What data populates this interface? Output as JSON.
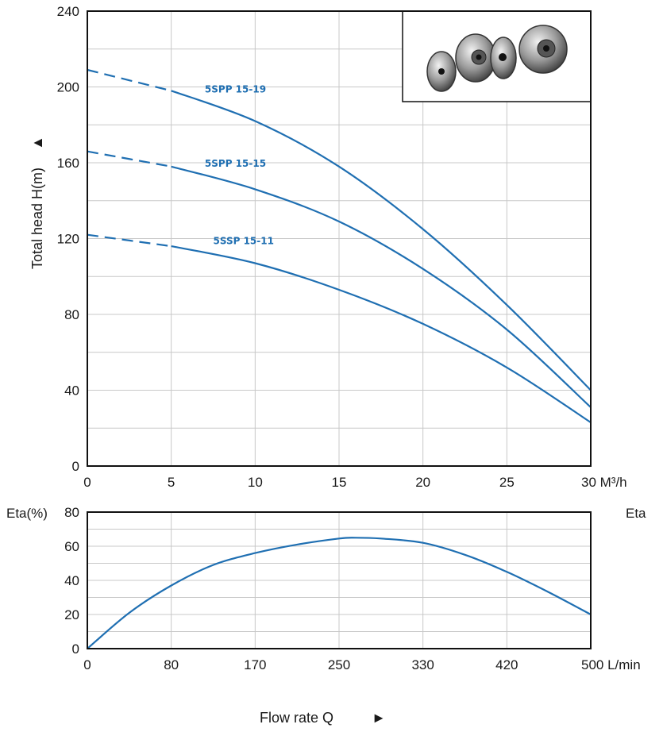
{
  "chart_data": [
    {
      "type": "line",
      "ylabel": "Total head H(m)",
      "ylabel_arrow": "▲",
      "xlim": [
        0,
        30
      ],
      "ylim": [
        0,
        240
      ],
      "x_ticks": [
        0,
        5,
        10,
        15,
        20,
        25,
        30
      ],
      "x_tick_labels": [
        "0",
        "5",
        "10",
        "15",
        "20",
        "25",
        "30 M³/h"
      ],
      "y_ticks": [
        0,
        40,
        80,
        120,
        160,
        200,
        240
      ],
      "y_tick_labels": [
        "0",
        "40",
        "80",
        "120",
        "160",
        "200",
        "240"
      ],
      "grid": true,
      "colors": {
        "curve": "#1f6fb2"
      },
      "dashed_until_x": 5,
      "inset_image": "pump-impeller-photo",
      "series": [
        {
          "name": "5SPP 15-19",
          "label_at": [
            7,
            197
          ],
          "x": [
            0,
            5,
            10,
            15,
            20,
            25,
            30
          ],
          "y": [
            209,
            198,
            182,
            158,
            125,
            85,
            40
          ]
        },
        {
          "name": "5SPP 15-15",
          "label_at": [
            7,
            158
          ],
          "x": [
            0,
            5,
            10,
            15,
            20,
            25,
            30
          ],
          "y": [
            166,
            158,
            146,
            129,
            104,
            72,
            31
          ]
        },
        {
          "name": "5SSP 15-11",
          "label_at": [
            7.5,
            117
          ],
          "x": [
            0,
            5,
            10,
            15,
            20,
            25,
            30
          ],
          "y": [
            122,
            116,
            107,
            93,
            75,
            52,
            23
          ]
        }
      ]
    },
    {
      "type": "line",
      "ylabel": "Eta(%)",
      "right_label": "Eta",
      "xlabel": "Flow rate Q",
      "xlabel_arrow": "►",
      "xlim": [
        0,
        30
      ],
      "ylim": [
        0,
        80
      ],
      "x_ticks": [
        0,
        5,
        10,
        15,
        20,
        25,
        30
      ],
      "x_tick_labels": [
        "0",
        "80",
        "170",
        "250",
        "330",
        "420",
        "500 L/min"
      ],
      "y_ticks": [
        0,
        20,
        40,
        60,
        80
      ],
      "y_tick_labels": [
        "0",
        "20",
        "40",
        "60",
        "80"
      ],
      "grid": true,
      "colors": {
        "curve": "#1f6fb2"
      },
      "series": [
        {
          "name": "",
          "x": [
            0,
            2.5,
            5,
            7.5,
            10,
            12.5,
            15,
            16,
            17.5,
            20,
            22.5,
            25,
            27.5,
            30
          ],
          "y": [
            0,
            21,
            37,
            49,
            56,
            61,
            64.5,
            65,
            64.5,
            62,
            55,
            45,
            33,
            20
          ]
        }
      ]
    }
  ]
}
